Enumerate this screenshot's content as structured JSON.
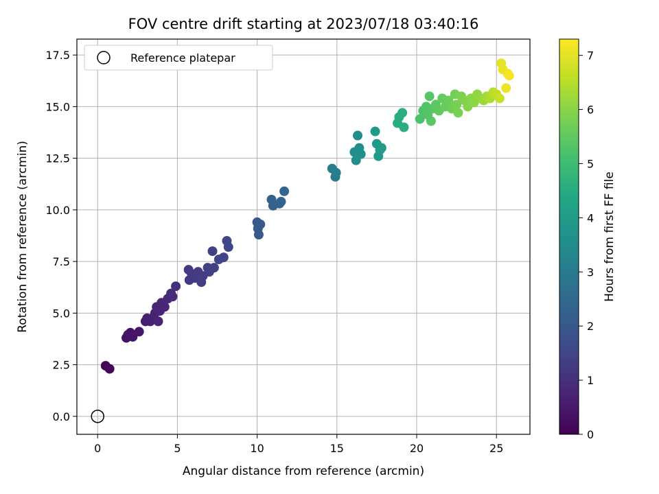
{
  "chart_data": {
    "type": "scatter",
    "title": "FOV centre drift starting at 2023/07/18 03:40:16",
    "xlabel": "Angular distance from reference (arcmin)",
    "ylabel": "Rotation from reference (arcmin)",
    "colorbar_label": "Hours from first FF file",
    "xlim": [
      -1.3,
      27.1
    ],
    "ylim": [
      -0.87,
      18.27
    ],
    "clim": [
      0,
      7.3
    ],
    "x_ticks": [
      0,
      5,
      10,
      15,
      20,
      25
    ],
    "x_tick_labels": [
      "0",
      "5",
      "10",
      "15",
      "20",
      "25"
    ],
    "y_ticks": [
      0.0,
      2.5,
      5.0,
      7.5,
      10.0,
      12.5,
      15.0,
      17.5
    ],
    "y_tick_labels": [
      "0.0",
      "2.5",
      "5.0",
      "7.5",
      "10.0",
      "12.5",
      "15.0",
      "17.5"
    ],
    "c_ticks": [
      0,
      1,
      2,
      3,
      4,
      5,
      6,
      7
    ],
    "c_tick_labels": [
      "0",
      "1",
      "2",
      "3",
      "4",
      "5",
      "6",
      "7"
    ],
    "grid": true,
    "colormap": "viridis",
    "legend": {
      "position": "top-left",
      "label": "Reference platepar"
    },
    "reference_point": {
      "x": 0,
      "y": 0
    },
    "points": [
      [
        0.5,
        2.45,
        0.05
      ],
      [
        0.75,
        2.3,
        0.08
      ],
      [
        1.8,
        3.8,
        0.35
      ],
      [
        1.9,
        3.95,
        0.38
      ],
      [
        2.05,
        4.05,
        0.4
      ],
      [
        2.2,
        3.85,
        0.42
      ],
      [
        2.6,
        4.1,
        0.45
      ],
      [
        3.0,
        4.6,
        0.6
      ],
      [
        3.1,
        4.75,
        0.62
      ],
      [
        3.3,
        4.6,
        0.65
      ],
      [
        3.5,
        4.8,
        0.68
      ],
      [
        3.6,
        5.0,
        0.7
      ],
      [
        3.7,
        5.3,
        0.72
      ],
      [
        3.8,
        4.6,
        0.74
      ],
      [
        3.9,
        5.1,
        0.76
      ],
      [
        4.0,
        5.5,
        0.78
      ],
      [
        4.2,
        5.3,
        0.8
      ],
      [
        4.4,
        5.7,
        0.85
      ],
      [
        4.6,
        5.95,
        0.9
      ],
      [
        4.7,
        5.8,
        0.92
      ],
      [
        4.9,
        6.3,
        0.95
      ],
      [
        5.7,
        7.1,
        1.2
      ],
      [
        5.75,
        6.6,
        1.22
      ],
      [
        5.9,
        6.9,
        1.24
      ],
      [
        6.1,
        6.7,
        1.26
      ],
      [
        6.3,
        7.0,
        1.28
      ],
      [
        6.5,
        6.5,
        1.3
      ],
      [
        6.6,
        6.8,
        1.32
      ],
      [
        6.9,
        7.2,
        1.35
      ],
      [
        7.0,
        7.0,
        1.37
      ],
      [
        7.2,
        8.0,
        1.4
      ],
      [
        7.3,
        7.2,
        1.42
      ],
      [
        7.6,
        7.6,
        1.45
      ],
      [
        7.9,
        7.7,
        1.5
      ],
      [
        8.1,
        8.5,
        1.52
      ],
      [
        8.2,
        8.2,
        1.55
      ],
      [
        10.0,
        9.4,
        2.0
      ],
      [
        10.05,
        9.1,
        2.02
      ],
      [
        10.1,
        8.8,
        2.04
      ],
      [
        10.2,
        9.3,
        2.06
      ],
      [
        10.9,
        10.5,
        2.3
      ],
      [
        11.0,
        10.2,
        2.32
      ],
      [
        11.4,
        10.3,
        2.35
      ],
      [
        11.5,
        10.4,
        2.37
      ],
      [
        11.7,
        10.9,
        2.4
      ],
      [
        14.7,
        12.0,
        3.0
      ],
      [
        14.9,
        11.6,
        3.05
      ],
      [
        14.95,
        11.8,
        3.08
      ],
      [
        16.1,
        12.8,
        3.5
      ],
      [
        16.2,
        12.4,
        3.52
      ],
      [
        16.3,
        13.6,
        3.55
      ],
      [
        16.4,
        13.0,
        3.57
      ],
      [
        16.5,
        12.7,
        3.6
      ],
      [
        17.4,
        13.8,
        3.9
      ],
      [
        17.5,
        13.2,
        3.92
      ],
      [
        17.6,
        12.6,
        3.95
      ],
      [
        17.7,
        12.9,
        3.97
      ],
      [
        17.8,
        13.0,
        4.0
      ],
      [
        18.8,
        14.2,
        4.5
      ],
      [
        18.9,
        14.5,
        4.52
      ],
      [
        19.1,
        14.7,
        4.55
      ],
      [
        19.2,
        14.0,
        4.58
      ],
      [
        20.2,
        14.4,
        5.2
      ],
      [
        20.4,
        14.8,
        5.25
      ],
      [
        20.6,
        15.0,
        5.3
      ],
      [
        20.7,
        14.6,
        5.32
      ],
      [
        20.8,
        15.5,
        5.35
      ],
      [
        20.9,
        14.3,
        5.38
      ],
      [
        21.0,
        14.9,
        5.4
      ],
      [
        21.2,
        15.1,
        5.45
      ],
      [
        21.4,
        14.8,
        5.5
      ],
      [
        21.6,
        15.4,
        5.55
      ],
      [
        21.8,
        15.0,
        5.6
      ],
      [
        22.0,
        15.3,
        5.65
      ],
      [
        22.2,
        14.9,
        5.7
      ],
      [
        22.4,
        15.6,
        5.75
      ],
      [
        22.5,
        15.1,
        5.8
      ],
      [
        22.6,
        14.7,
        5.82
      ],
      [
        22.8,
        15.5,
        5.85
      ],
      [
        23.0,
        15.3,
        5.9
      ],
      [
        23.2,
        15.0,
        5.95
      ],
      [
        23.4,
        15.4,
        6.0
      ],
      [
        23.6,
        15.2,
        6.05
      ],
      [
        23.8,
        15.6,
        6.1
      ],
      [
        24.0,
        15.4,
        6.15
      ],
      [
        24.2,
        15.3,
        6.2
      ],
      [
        24.4,
        15.5,
        6.3
      ],
      [
        24.6,
        15.4,
        6.4
      ],
      [
        24.8,
        15.7,
        6.5
      ],
      [
        25.0,
        15.6,
        6.6
      ],
      [
        25.2,
        15.4,
        6.7
      ],
      [
        25.3,
        17.1,
        7.0
      ],
      [
        25.4,
        16.8,
        7.05
      ],
      [
        25.6,
        15.9,
        7.1
      ],
      [
        25.7,
        16.6,
        7.15
      ],
      [
        25.8,
        16.5,
        7.2
      ]
    ]
  }
}
